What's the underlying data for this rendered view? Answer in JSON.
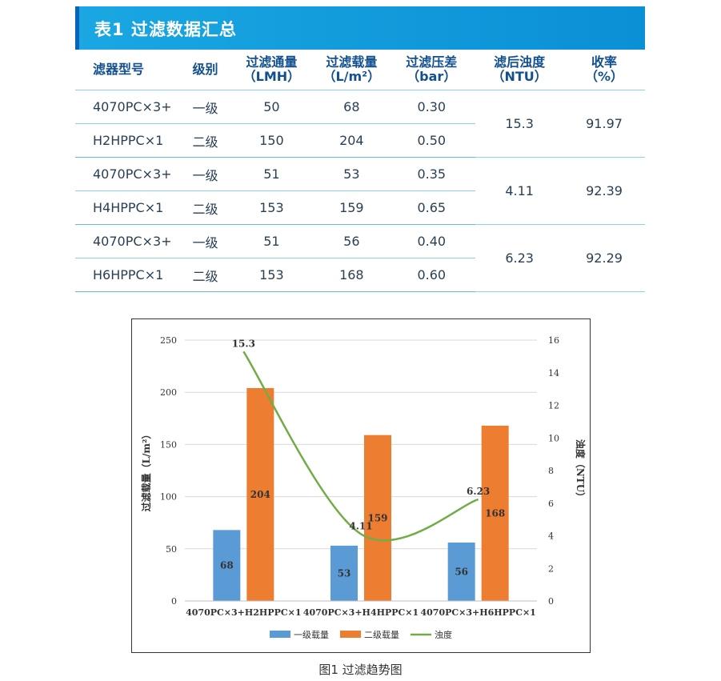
{
  "table": {
    "title": "表1 过滤数据汇总",
    "headers": {
      "model": "滤器型号",
      "grade": "级别",
      "flux_1": "过滤通量",
      "flux_2": "（LMH）",
      "load_1": "过滤载量",
      "load_2": "（L/m²）",
      "pressure_1": "过滤压差",
      "pressure_2": "（bar）",
      "turbidity_1": "滤后浊度",
      "turbidity_2": "（NTU）",
      "yield_1": "收率",
      "yield_2": "（%）"
    },
    "rows": [
      {
        "model": "4070PC×3+",
        "grade": "一级",
        "flux": "50",
        "load": "68",
        "pressure": "0.30"
      },
      {
        "model": "H2HPPC×1",
        "grade": "二级",
        "flux": "150",
        "load": "204",
        "pressure": "0.50"
      },
      {
        "model": "4070PC×3+",
        "grade": "一级",
        "flux": "51",
        "load": "53",
        "pressure": "0.35"
      },
      {
        "model": "H4HPPC×1",
        "grade": "二级",
        "flux": "153",
        "load": "159",
        "pressure": "0.65"
      },
      {
        "model": "4070PC×3+",
        "grade": "一级",
        "flux": "51",
        "load": "56",
        "pressure": "0.40"
      },
      {
        "model": "H6HPPC×1",
        "grade": "二级",
        "flux": "153",
        "load": "168",
        "pressure": "0.60"
      }
    ],
    "groups": [
      {
        "turbidity": "15.3",
        "yield": "91.97"
      },
      {
        "turbidity": "4.11",
        "yield": "92.39"
      },
      {
        "turbidity": "6.23",
        "yield": "92.29"
      }
    ]
  },
  "chart_data": {
    "type": "bar",
    "categories": [
      "4070PC×3+H2HPPC×1",
      "4070PC×3+H4HPPC×1",
      "4070PC×3+H6HPPC×1"
    ],
    "series": [
      {
        "name": "一级载量",
        "type": "bar",
        "axis": "left",
        "color": "#5b9bd5",
        "values": [
          68,
          53,
          56
        ]
      },
      {
        "name": "二级载量",
        "type": "bar",
        "axis": "left",
        "color": "#ed7d31",
        "values": [
          204,
          159,
          168
        ]
      },
      {
        "name": "浊度",
        "type": "line",
        "axis": "right",
        "color": "#70ad47",
        "values": [
          15.3,
          4.11,
          6.23
        ]
      }
    ],
    "ylabel": "过滤载量（L/m²）",
    "y2label": "浊度（NTU）",
    "ylim": [
      0,
      250
    ],
    "yticks": [
      "0",
      "50",
      "100",
      "150",
      "200",
      "250"
    ],
    "y2lim": [
      0,
      16
    ],
    "y2ticks": [
      "0",
      "2",
      "4",
      "6",
      "8",
      "10",
      "12",
      "14",
      "16"
    ],
    "grid": true,
    "legend_position": "bottom",
    "line_labels": [
      "15.3",
      "4.11",
      "6.23"
    ],
    "bar_labels_1": [
      "68",
      "53",
      "56"
    ],
    "bar_labels_2": [
      "204",
      "159",
      "168"
    ]
  },
  "caption": "图1 过滤趋势图"
}
